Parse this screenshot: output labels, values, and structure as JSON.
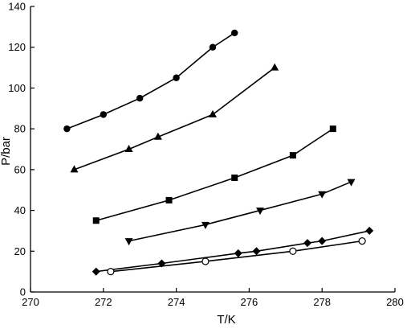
{
  "chart_data": {
    "type": "scatter",
    "xlabel": "T/K",
    "ylabel": "P/bar",
    "xlim": [
      270,
      280
    ],
    "ylim": [
      0,
      140
    ],
    "x_ticks": [
      270,
      272,
      274,
      276,
      278,
      280
    ],
    "y_ticks": [
      0,
      20,
      40,
      60,
      80,
      100,
      120,
      140
    ],
    "grid": false,
    "legend": "none",
    "series": [
      {
        "marker": "circle-filled",
        "x": [
          271.0,
          272.0,
          273.0,
          274.0,
          275.0,
          275.6
        ],
        "y": [
          80,
          87,
          95,
          105,
          120,
          127
        ]
      },
      {
        "marker": "triangle-up",
        "x": [
          271.2,
          272.7,
          273.5,
          275.0,
          276.7
        ],
        "y": [
          60,
          70,
          76,
          87,
          110
        ]
      },
      {
        "marker": "square",
        "x": [
          271.8,
          273.8,
          275.6,
          277.2,
          278.3
        ],
        "y": [
          35,
          45,
          56,
          67,
          80
        ]
      },
      {
        "marker": "triangle-down",
        "x": [
          272.7,
          274.8,
          276.3,
          278.0,
          278.8
        ],
        "y": [
          25,
          33,
          40,
          48,
          54
        ]
      },
      {
        "marker": "diamond",
        "x": [
          271.8,
          273.6,
          275.7,
          276.2,
          277.6,
          278.0,
          279.3
        ],
        "y": [
          10,
          14,
          19,
          20,
          24,
          25,
          30
        ]
      },
      {
        "marker": "circle-open",
        "x": [
          272.2,
          274.8,
          277.2,
          279.1
        ],
        "y": [
          10,
          15,
          20,
          25
        ]
      }
    ]
  }
}
